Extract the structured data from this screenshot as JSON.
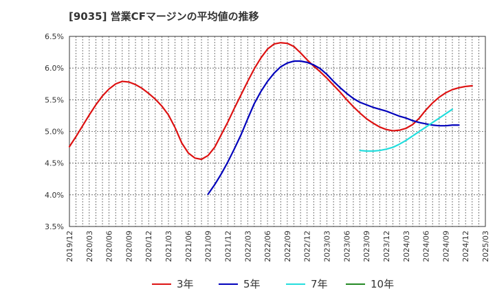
{
  "chart_data": {
    "type": "line",
    "title": "[9035]  営業CFマージンの平均値の推移",
    "xlabel": "",
    "ylabel": "",
    "ylim": [
      3.5,
      6.5
    ],
    "yticks": [
      "3.5%",
      "4.0%",
      "4.5%",
      "5.0%",
      "5.5%",
      "6.0%",
      "6.5%"
    ],
    "xticks": [
      "2019/12",
      "2020/03",
      "2020/06",
      "2020/09",
      "2020/12",
      "2021/03",
      "2021/06",
      "2021/09",
      "2021/12",
      "2022/03",
      "2022/06",
      "2022/09",
      "2022/12",
      "2023/03",
      "2023/06",
      "2023/09",
      "2023/12",
      "2024/03",
      "2024/06",
      "2024/09",
      "2024/12",
      "2025/03"
    ],
    "x_months": [
      "2019/12",
      "2020/01",
      "2020/02",
      "2020/03",
      "2020/04",
      "2020/05",
      "2020/06",
      "2020/07",
      "2020/08",
      "2020/09",
      "2020/10",
      "2020/11",
      "2020/12",
      "2021/01",
      "2021/02",
      "2021/03",
      "2021/04",
      "2021/05",
      "2021/06",
      "2021/07",
      "2021/08",
      "2021/09",
      "2021/10",
      "2021/11",
      "2021/12",
      "2022/01",
      "2022/02",
      "2022/03",
      "2022/04",
      "2022/05",
      "2022/06",
      "2022/07",
      "2022/08",
      "2022/09",
      "2022/10",
      "2022/11",
      "2022/12",
      "2023/01",
      "2023/02",
      "2023/03",
      "2023/04",
      "2023/05",
      "2023/06",
      "2023/07",
      "2023/08",
      "2023/09",
      "2023/10",
      "2023/11",
      "2023/12",
      "2024/01",
      "2024/02",
      "2024/03",
      "2024/04",
      "2024/05",
      "2024/06",
      "2024/07",
      "2024/08",
      "2024/09",
      "2024/10",
      "2024/11",
      "2024/12",
      "2025/01",
      "2025/02",
      "2025/03"
    ],
    "grid": true,
    "legend_position": "bottom",
    "series": [
      {
        "name": "3年",
        "color": "#dd1111",
        "start": "2019/12",
        "values": [
          4.76,
          4.92,
          5.09,
          5.26,
          5.42,
          5.56,
          5.67,
          5.75,
          5.79,
          5.78,
          5.74,
          5.68,
          5.6,
          5.51,
          5.4,
          5.26,
          5.06,
          4.82,
          4.66,
          4.58,
          4.56,
          4.62,
          4.75,
          4.95,
          5.15,
          5.37,
          5.58,
          5.79,
          5.99,
          6.16,
          6.3,
          6.38,
          6.4,
          6.39,
          6.34,
          6.24,
          6.13,
          6.03,
          5.94,
          5.84,
          5.73,
          5.62,
          5.5,
          5.39,
          5.29,
          5.2,
          5.13,
          5.07,
          5.03,
          5.01,
          5.02,
          5.05,
          5.11,
          5.21,
          5.34,
          5.45,
          5.54,
          5.61,
          5.66,
          5.69,
          5.71,
          5.72
        ]
      },
      {
        "name": "5年",
        "color": "#0000bb",
        "start": "2021/09",
        "values": [
          4.01,
          4.16,
          4.33,
          4.52,
          4.73,
          4.95,
          5.2,
          5.44,
          5.63,
          5.79,
          5.92,
          6.02,
          6.08,
          6.11,
          6.11,
          6.09,
          6.05,
          5.99,
          5.9,
          5.79,
          5.69,
          5.6,
          5.52,
          5.46,
          5.42,
          5.38,
          5.35,
          5.32,
          5.28,
          5.24,
          5.21,
          5.17,
          5.14,
          5.12,
          5.1,
          5.09,
          5.09,
          5.1,
          5.1
        ]
      },
      {
        "name": "7年",
        "color": "#22dddd",
        "start": "2023/08",
        "values": [
          4.7,
          4.69,
          4.69,
          4.7,
          4.72,
          4.75,
          4.8,
          4.86,
          4.93,
          5.0,
          5.07,
          5.14,
          5.21,
          5.28,
          5.35
        ]
      },
      {
        "name": "10年",
        "color": "#228822",
        "start": "2019/12",
        "values": []
      }
    ]
  }
}
